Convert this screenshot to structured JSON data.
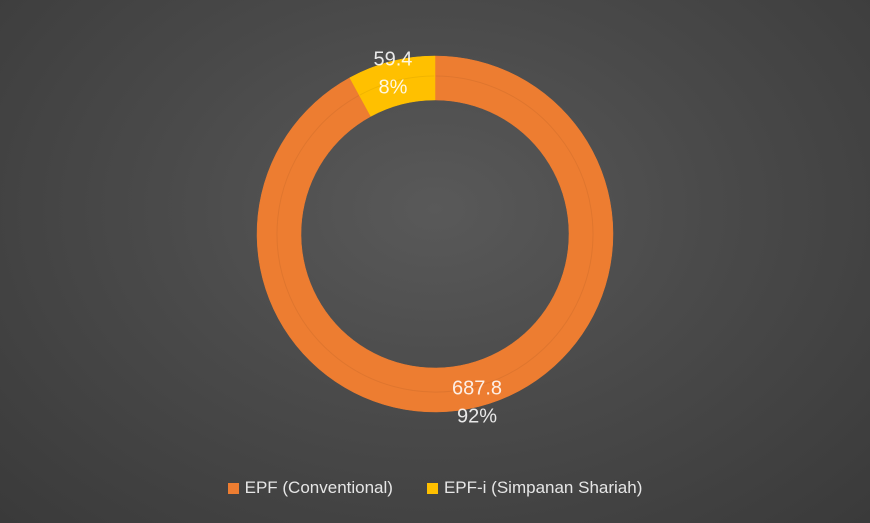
{
  "chart_data": {
    "type": "pie",
    "variant": "donut",
    "title": "",
    "categories": [
      "EPF (Conventional)",
      "EPF-i (Simpanan Shariah)"
    ],
    "values": [
      687.8,
      59.4
    ],
    "percent_labels": [
      "92%",
      "8%"
    ],
    "value_labels": [
      "687.8",
      "59.4"
    ],
    "colors": [
      "#ED7D31",
      "#FFC000"
    ],
    "legend_position": "bottom",
    "start_angle": "12 o'clock, clockwise"
  }
}
